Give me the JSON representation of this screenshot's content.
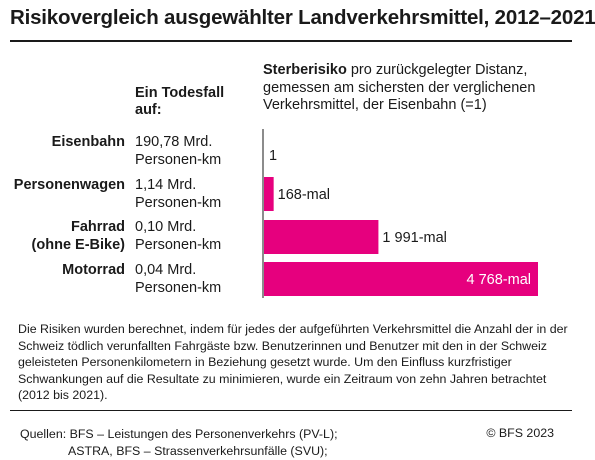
{
  "title": "Risikovergleich ausgewählter Landverkehrsmittel, 2012–2021",
  "column_head_left_1": "Ein Todesfall",
  "column_head_left_2": "auf:",
  "column_head_right_bold": "Sterberisiko",
  "column_head_right_rest": " pro zurückgelegter Distanz, gemessen am sichersten der verglichenen Verkehrsmittel, der Eisenbahn (=1)",
  "colors": {
    "bar": "#e6007e",
    "text": "#1a1a1a",
    "bar_label_inside": "#ffffff"
  },
  "chart_data": {
    "type": "bar",
    "orientation": "horizontal",
    "categories": [
      {
        "label_lines": [
          "Eisenbahn"
        ],
        "distance_lines": [
          "190,78 Mrd.",
          "Personen-km"
        ],
        "value": 1,
        "value_label": "1"
      },
      {
        "label_lines": [
          "Personenwagen"
        ],
        "distance_lines": [
          "1,14 Mrd.",
          "Personen-km"
        ],
        "value": 168,
        "value_label": "168-mal"
      },
      {
        "label_lines": [
          "Fahrrad",
          "(ohne E-Bike)"
        ],
        "distance_lines": [
          "0,10 Mrd.",
          "Personen-km"
        ],
        "value": 1991,
        "value_label": "1 991-mal"
      },
      {
        "label_lines": [
          "Motorrad"
        ],
        "distance_lines": [
          "0,04 Mrd.",
          "Personen-km"
        ],
        "value": 4768,
        "value_label": "4 768-mal"
      }
    ],
    "xlim": [
      0,
      4768
    ]
  },
  "note": "Die Risiken wurden berechnet, indem für jedes der aufgeführten Verkehrsmittel die Anzahl der in der Schweiz tödlich verunfallten Fahrgäste bzw. Benutzerinnen und Benutzer mit den in der Schweiz geleisteten Personenkilometern in Beziehung gesetzt wurde. Um den Einfluss kurzfristiger Schwankungen auf die Resultate zu minimieren, wurde ein Zeitraum von zehn Jahren betrachtet (2012 bis 2021).",
  "sources_line_1": "Quellen: BFS – Leistungen des Personenverkehrs (PV-L);",
  "sources_line_2": "ASTRA, BFS – Strassenverkehrsunfälle (SVU);",
  "copyright": "© BFS 2023"
}
